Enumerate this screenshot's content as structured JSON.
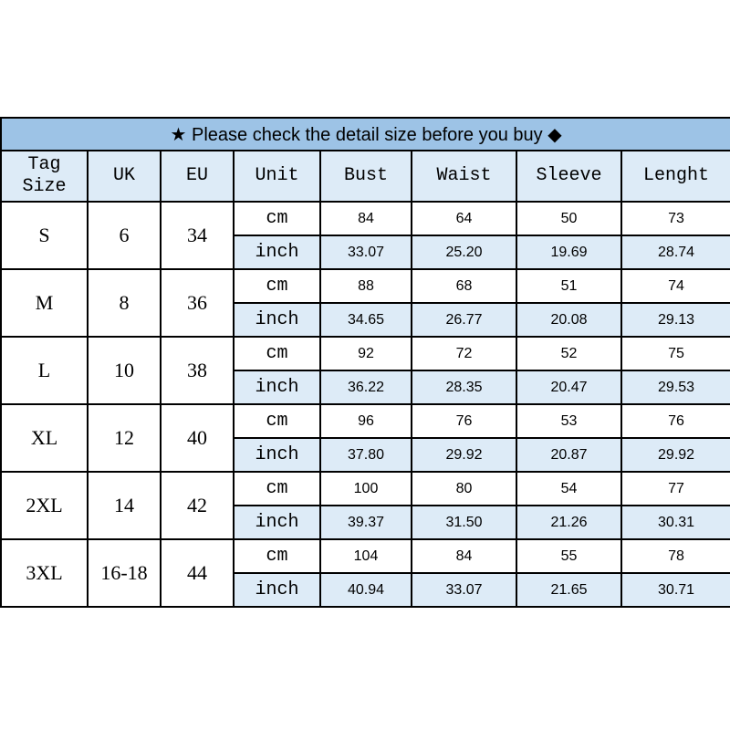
{
  "banner": {
    "star_icon": "★",
    "text": "Please check the detail size before you buy",
    "diamond_icon": "◆",
    "full": "★ Please check the detail size before you buy ◆"
  },
  "headers": [
    "Tag\nSize",
    "UK",
    "EU",
    "Unit",
    "Bust",
    "Waist",
    "Sleeve",
    "Lenght"
  ],
  "header_tag_line1": "Tag",
  "header_tag_line2": "Size",
  "colors": {
    "banner": "#9dc3e6",
    "light": "#ddebf7"
  },
  "sizes": [
    {
      "tag": "S",
      "uk": "6",
      "eu": "34",
      "cm": [
        "84",
        "64",
        "50",
        "73"
      ],
      "inch": [
        "33.07",
        "25.20",
        "19.69",
        "28.74"
      ]
    },
    {
      "tag": "M",
      "uk": "8",
      "eu": "36",
      "cm": [
        "88",
        "68",
        "51",
        "74"
      ],
      "inch": [
        "34.65",
        "26.77",
        "20.08",
        "29.13"
      ]
    },
    {
      "tag": "L",
      "uk": "10",
      "eu": "38",
      "cm": [
        "92",
        "72",
        "52",
        "75"
      ],
      "inch": [
        "36.22",
        "28.35",
        "20.47",
        "29.53"
      ]
    },
    {
      "tag": "XL",
      "uk": "12",
      "eu": "40",
      "cm": [
        "96",
        "76",
        "53",
        "76"
      ],
      "inch": [
        "37.80",
        "29.92",
        "20.87",
        "29.92"
      ]
    },
    {
      "tag": "2XL",
      "uk": "14",
      "eu": "42",
      "cm": [
        "100",
        "80",
        "54",
        "77"
      ],
      "inch": [
        "39.37",
        "31.50",
        "21.26",
        "30.31"
      ]
    },
    {
      "tag": "3XL",
      "uk": "16-18",
      "eu": "44",
      "cm": [
        "104",
        "84",
        "55",
        "78"
      ],
      "inch": [
        "40.94",
        "33.07",
        "21.65",
        "30.71"
      ]
    }
  ],
  "units": {
    "cm": "cm",
    "inch": "inch"
  }
}
